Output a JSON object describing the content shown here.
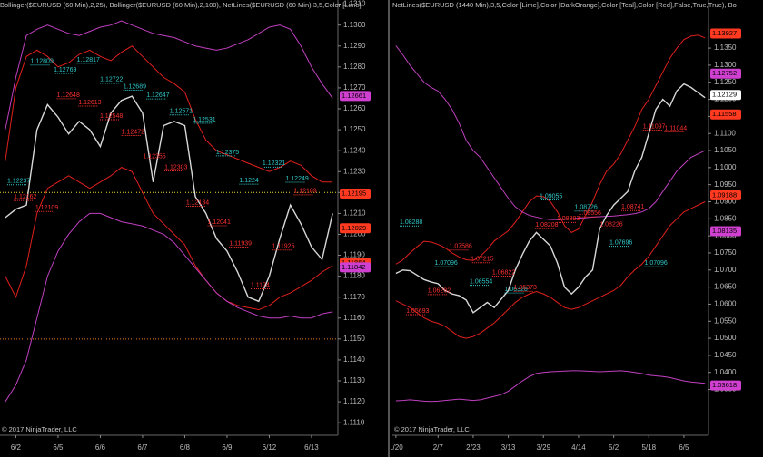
{
  "chart_data": [
    {
      "type": "line",
      "title": "Bollinger($EURUSD (60 Min),2,25), Bollinger($EURUSD (60 Min),2,100), NetLines($EURUSD (60 Min),3,5,Color [Lime],",
      "footer": "© 2017 NinjaTrader, LLC",
      "categories": [
        null,
        "6/2",
        null,
        null,
        null,
        "6/5",
        null,
        null,
        null,
        "6/6",
        null,
        null,
        null,
        "6/7",
        null,
        null,
        null,
        "6/8",
        null,
        null,
        null,
        "6/9",
        null,
        null,
        null,
        "6/12",
        null,
        null,
        null,
        "6/13",
        null,
        null
      ],
      "series": [
        {
          "color": "#e0201c",
          "values": [
            1.1235,
            1.127,
            1.1285,
            1.1288,
            1.1285,
            1.128,
            1.1282,
            1.1286,
            1.1288,
            1.1285,
            1.1283,
            1.1287,
            1.129,
            1.1285,
            1.128,
            1.1275,
            1.1272,
            1.1268,
            1.1255,
            1.1245,
            1.124,
            1.1238,
            1.1236,
            1.1234,
            1.1232,
            1.123,
            1.1232,
            1.1235,
            1.1233,
            1.1228,
            1.1225,
            1.1225
          ]
        },
        {
          "color": "#e0201c",
          "values": [
            1.118,
            1.117,
            1.1185,
            1.121,
            1.1222,
            1.1225,
            1.1228,
            1.1225,
            1.1222,
            1.1225,
            1.1228,
            1.1232,
            1.123,
            1.122,
            1.121,
            1.1205,
            1.12,
            1.1195,
            1.1185,
            1.1178,
            1.1172,
            1.1168,
            1.1166,
            1.1165,
            1.1164,
            1.1166,
            1.117,
            1.1172,
            1.1175,
            1.1178,
            1.1182,
            1.1185
          ]
        },
        {
          "color": "#c040c0",
          "values": [
            1.125,
            1.1275,
            1.1295,
            1.1298,
            1.13,
            1.1298,
            1.1296,
            1.1295,
            1.1297,
            1.1299,
            1.13,
            1.1302,
            1.13,
            1.1298,
            1.1296,
            1.1295,
            1.1294,
            1.1292,
            1.129,
            1.1289,
            1.1288,
            1.1289,
            1.1291,
            1.1293,
            1.1296,
            1.1299,
            1.13,
            1.1298,
            1.129,
            1.128,
            1.1272,
            1.1265
          ]
        },
        {
          "color": "#c040c0",
          "values": [
            1.112,
            1.1128,
            1.114,
            1.116,
            1.118,
            1.1192,
            1.12,
            1.1206,
            1.121,
            1.121,
            1.1208,
            1.1206,
            1.1205,
            1.1204,
            1.1202,
            1.12,
            1.1196,
            1.119,
            1.1184,
            1.1178,
            1.1172,
            1.1168,
            1.1165,
            1.1163,
            1.1161,
            1.116,
            1.116,
            1.1161,
            1.116,
            1.116,
            1.1162,
            1.1163
          ]
        },
        {
          "color": "#d8d8d8",
          "values": [
            1.1208,
            1.1212,
            1.1214,
            1.125,
            1.1262,
            1.1256,
            1.1248,
            1.1254,
            1.125,
            1.1242,
            1.1258,
            1.1264,
            1.1266,
            1.1258,
            1.1225,
            1.1252,
            1.1254,
            1.1252,
            1.1218,
            1.121,
            1.1198,
            1.1192,
            1.1182,
            1.117,
            1.1168,
            1.118,
            1.1198,
            1.1214,
            1.1205,
            1.1194,
            1.1188,
            1.121
          ]
        }
      ],
      "reference_lines": [
        {
          "value": 1.122,
          "color": "#e8e020"
        },
        {
          "value": 1.115,
          "color": "#f08020"
        }
      ],
      "net_lines": [
        {
          "color": "#30c8c8",
          "values": [
            1.12237,
            1.12809,
            1.12769,
            1.12817,
            1.12722,
            1.12689,
            1.12647,
            1.12571,
            1.12531,
            1.12375,
            1.1224,
            1.12321,
            1.12249
          ]
        },
        {
          "color": "#ff3030",
          "values": [
            1.12162,
            1.12109,
            1.12648,
            1.12613,
            1.12548,
            1.12472,
            1.12355,
            1.12303,
            1.12134,
            1.12041,
            1.11939,
            1.1174,
            1.11925,
            1.12189
          ]
        }
      ],
      "price_markers": {
        "values": [
          1.12661,
          1.12195,
          1.12029,
          1.11864,
          1.11842
        ],
        "colors": [
          "#d040d0",
          "#ff3a20",
          "#ff3a20",
          "#ff3a20",
          "#d040d0"
        ]
      },
      "ylim": [
        1.1104,
        1.1312
      ],
      "yticks": [
        {
          "value": 1.111,
          "label": "1.1110"
        },
        {
          "value": 1.112,
          "label": "1.1120"
        },
        {
          "value": 1.113,
          "label": "1.1130"
        },
        {
          "value": 1.114,
          "label": "1.1140"
        },
        {
          "value": 1.115,
          "label": "1.1150"
        },
        {
          "value": 1.116,
          "label": "1.1160"
        },
        {
          "value": 1.117,
          "label": "1.1170"
        },
        {
          "value": 1.118,
          "label": "1.1180"
        },
        {
          "value": 1.119,
          "label": "1.1190"
        },
        {
          "value": 1.12,
          "label": "1.1200"
        },
        {
          "value": 1.121,
          "label": "1.1210"
        },
        {
          "value": 1.122,
          "label": "1.1220"
        },
        {
          "value": 1.123,
          "label": "1.1230"
        },
        {
          "value": 1.124,
          "label": "1.1240"
        },
        {
          "value": 1.125,
          "label": "1.1250"
        },
        {
          "value": 1.126,
          "label": "1.1260"
        },
        {
          "value": 1.127,
          "label": "1.1270"
        },
        {
          "value": 1.128,
          "label": "1.1280"
        },
        {
          "value": 1.129,
          "label": "1.1290"
        },
        {
          "value": 1.13,
          "label": "1.1300"
        },
        {
          "value": 1.131,
          "label": "1.1310"
        }
      ]
    },
    {
      "type": "line",
      "title": "NetLines($EURUSD (1440 Min),3,5,Color [Lime],Color [DarkOrange],Color [Teal],Color [Red],False,True,True), Bo",
      "footer": "© 2017 NinjaTrader, LLC",
      "categories": [
        "1/20",
        null,
        null,
        null,
        null,
        null,
        "2/7",
        null,
        null,
        null,
        null,
        "2/23",
        null,
        null,
        null,
        null,
        "3/13",
        null,
        null,
        null,
        null,
        "3/29",
        null,
        null,
        null,
        null,
        "4/14",
        null,
        null,
        null,
        null,
        "5/2",
        null,
        null,
        null,
        null,
        "5/18",
        null,
        null,
        null,
        null,
        "6/5",
        null,
        null,
        null
      ],
      "series": [
        {
          "color": "#e0201c",
          "values": [
            1.0717,
            1.073,
            1.075,
            1.0768,
            1.0784,
            1.0782,
            1.0775,
            1.0765,
            1.075,
            1.0738,
            1.073,
            1.0728,
            1.074,
            1.076,
            1.0785,
            1.08,
            1.0815,
            1.084,
            1.087,
            1.09,
            1.0917,
            1.0915,
            1.09,
            1.087,
            1.083,
            1.081,
            1.082,
            1.086,
            1.09,
            1.095,
            1.099,
            1.101,
            1.104,
            1.108,
            1.112,
            1.117,
            1.12,
            1.124,
            1.128,
            1.132,
            1.135,
            1.1375,
            1.1385,
            1.1388,
            1.138
          ]
        },
        {
          "color": "#e0201c",
          "values": [
            1.061,
            1.06,
            1.059,
            1.0575,
            1.056,
            1.055,
            1.0544,
            1.0535,
            1.052,
            1.0505,
            1.05,
            1.0505,
            1.0515,
            1.053,
            1.0545,
            1.0565,
            1.0585,
            1.0605,
            1.062,
            1.063,
            1.0637,
            1.063,
            1.062,
            1.0605,
            1.059,
            1.0585,
            1.059,
            1.06,
            1.061,
            1.062,
            1.063,
            1.064,
            1.0655,
            1.068,
            1.07,
            1.0717,
            1.074,
            1.077,
            1.08,
            1.083,
            1.085,
            1.087,
            1.088,
            1.089,
            1.09
          ]
        },
        {
          "color": "#c040c0",
          "values": [
            1.1357,
            1.133,
            1.13,
            1.1275,
            1.125,
            1.1235,
            1.1224,
            1.12,
            1.117,
            1.113,
            1.108,
            1.105,
            1.103,
            1.1,
            1.097,
            1.094,
            1.091,
            1.0885,
            1.087,
            1.086,
            1.0855,
            1.085,
            1.0848,
            1.0848,
            1.0849,
            1.085,
            1.0852,
            1.0853,
            1.0855,
            1.0856,
            1.0857,
            1.0858,
            1.086,
            1.0862,
            1.0865,
            1.087,
            1.088,
            1.09,
            1.093,
            1.096,
            1.099,
            1.101,
            1.103,
            1.104,
            1.105
          ]
        },
        {
          "color": "#c040c0",
          "values": [
            1.0317,
            1.0318,
            1.032,
            1.0318,
            1.0316,
            1.0315,
            1.0316,
            1.0318,
            1.032,
            1.0322,
            1.032,
            1.0318,
            1.032,
            1.0325,
            1.033,
            1.0335,
            1.0345,
            1.036,
            1.0375,
            1.0388,
            1.0397,
            1.04,
            1.0402,
            1.0403,
            1.0404,
            1.0405,
            1.0405,
            1.0404,
            1.0403,
            1.0402,
            1.0403,
            1.0404,
            1.0405,
            1.0403,
            1.04,
            1.0397,
            1.0392,
            1.039,
            1.0388,
            1.0385,
            1.038,
            1.0375,
            1.0372,
            1.037,
            1.0368
          ]
        },
        {
          "color": "#d8d8d8",
          "values": [
            1.069,
            1.07,
            1.0698,
            1.0685,
            1.0672,
            1.0665,
            1.066,
            1.064,
            1.063,
            1.0625,
            1.0612,
            1.0575,
            1.059,
            1.0605,
            1.059,
            1.0615,
            1.064,
            1.07,
            1.0745,
            1.0785,
            1.081,
            1.079,
            1.077,
            1.072,
            1.065,
            1.063,
            1.065,
            1.068,
            1.07,
            1.082,
            1.086,
            1.089,
            1.091,
            1.093,
            1.099,
            1.103,
            1.11,
            1.117,
            1.12,
            1.118,
            1.1225,
            1.1245,
            1.1235,
            1.122,
            1.1205
          ]
        }
      ],
      "net_lines": [
        {
          "color": "#30c8c8",
          "values": [
            1.08288,
            1.07096,
            1.06554,
            1.06328,
            1.09055,
            1.08726,
            1.07696,
            1.07096
          ]
        },
        {
          "color": "#ff3030",
          "values": [
            1.05693,
            1.06282,
            1.07586,
            1.07215,
            1.06822,
            1.06373,
            1.08208,
            1.08393,
            1.08556,
            1.08226,
            1.08741,
            1.11097,
            1.11044
          ]
        }
      ],
      "price_markers": {
        "values": [
          1.13927,
          1.12752,
          1.12129,
          1.11558,
          1.09188,
          1.08135,
          1.03618
        ],
        "colors": [
          "#ff3a20",
          "#d040d0",
          "#ffffff",
          "#ff3a20",
          "#ff3a20",
          "#d040d0",
          "#d040d0"
        ]
      },
      "ylim": [
        1.0216,
        1.1491
      ],
      "yticks": [
        {
          "value": 1.035,
          "label": "1.0350"
        },
        {
          "value": 1.04,
          "label": "1.0400"
        },
        {
          "value": 1.045,
          "label": "1.0450"
        },
        {
          "value": 1.05,
          "label": "1.0500"
        },
        {
          "value": 1.055,
          "label": "1.0550"
        },
        {
          "value": 1.06,
          "label": "1.0600"
        },
        {
          "value": 1.065,
          "label": "1.0650"
        },
        {
          "value": 1.07,
          "label": "1.0700"
        },
        {
          "value": 1.075,
          "label": "1.0750"
        },
        {
          "value": 1.08,
          "label": "1.0800"
        },
        {
          "value": 1.085,
          "label": "1.0850"
        },
        {
          "value": 1.09,
          "label": "1.0900"
        },
        {
          "value": 1.095,
          "label": "1.0950"
        },
        {
          "value": 1.1,
          "label": "1.1000"
        },
        {
          "value": 1.105,
          "label": "1.1050"
        },
        {
          "value": 1.11,
          "label": "1.1100"
        },
        {
          "value": 1.115,
          "label": "1.1150"
        },
        {
          "value": 1.12,
          "label": "1.1200"
        },
        {
          "value": 1.125,
          "label": "1.1250"
        },
        {
          "value": 1.13,
          "label": "1.1300"
        },
        {
          "value": 1.135,
          "label": "1.1350"
        }
      ]
    }
  ]
}
